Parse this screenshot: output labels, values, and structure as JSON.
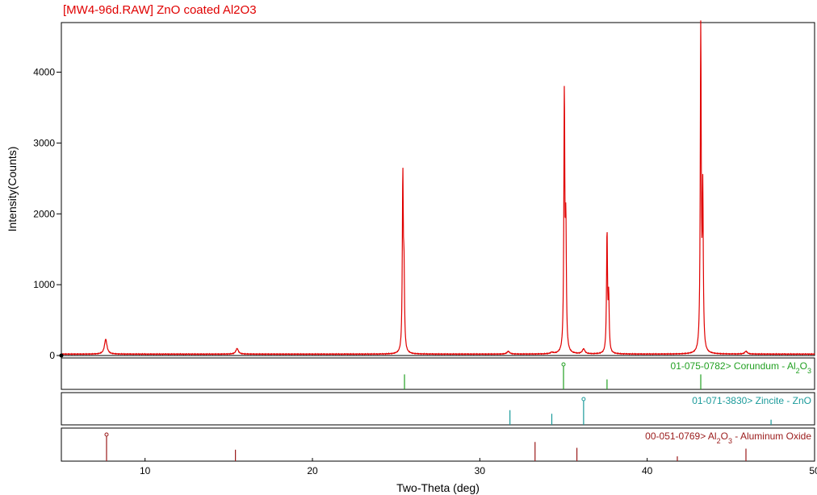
{
  "chart_data": {
    "type": "line",
    "title": "[MW4-96d.RAW] ZnO coated Al2O3",
    "xlabel": "Two-Theta (deg)",
    "ylabel": "Intensity(Counts)",
    "xlim": [
      5,
      50
    ],
    "ylim": [
      0,
      4700
    ],
    "x_ticks": [
      10,
      20,
      30,
      40,
      50
    ],
    "x_tick_labels": [
      "10",
      "20",
      "30",
      "40",
      "50"
    ],
    "y_ticks": [
      0,
      1000,
      2000,
      3000,
      4000
    ],
    "y_tick_labels": [
      "0",
      "1000",
      "2000",
      "3000",
      "4000"
    ],
    "colors": {
      "pattern": "#e00000",
      "title": "#e00000"
    },
    "series": [
      {
        "baseline": 20,
        "peaks": [
          {
            "x": 7.65,
            "y": 230
          },
          {
            "x": 15.5,
            "y": 100
          },
          {
            "x": 25.4,
            "y": 2480
          },
          {
            "x": 25.47,
            "y": 1050
          },
          {
            "x": 31.7,
            "y": 60
          },
          {
            "x": 34.3,
            "y": 40
          },
          {
            "x": 35.05,
            "y": 3640
          },
          {
            "x": 35.14,
            "y": 1680
          },
          {
            "x": 36.2,
            "y": 90
          },
          {
            "x": 37.6,
            "y": 1720
          },
          {
            "x": 37.7,
            "y": 780
          },
          {
            "x": 43.2,
            "y": 4580
          },
          {
            "x": 43.32,
            "y": 2200
          },
          {
            "x": 45.9,
            "y": 60
          }
        ]
      }
    ],
    "reference_patterns": [
      {
        "label_html": "01-075-0782&gt; Corundum - Al<tspan baseline-shift=\"sub\" font-size=\"9\">2</tspan>O<tspan baseline-shift=\"sub\" font-size=\"9\">3</tspan>",
        "color": "#22a022",
        "lines": [
          {
            "x": 25.5,
            "rel": 0.6
          },
          {
            "x": 35.0,
            "rel": 1.0
          },
          {
            "x": 37.6,
            "rel": 0.4
          },
          {
            "x": 43.2,
            "rel": 0.6
          }
        ]
      },
      {
        "label_html": "01-071-3830&gt; Zincite - ZnO",
        "color": "#1a9a9a",
        "lines": [
          {
            "x": 31.8,
            "rel": 0.57
          },
          {
            "x": 34.3,
            "rel": 0.43
          },
          {
            "x": 36.2,
            "rel": 1.0
          },
          {
            "x": 47.4,
            "rel": 0.2
          }
        ]
      },
      {
        "label_html": "00-051-0769&gt; Al<tspan baseline-shift=\"sub\" font-size=\"9\">2</tspan>O<tspan baseline-shift=\"sub\" font-size=\"9\">3</tspan> - Aluminum Oxide",
        "color": "#9a1a1a",
        "lines": [
          {
            "x": 7.7,
            "rel": 1.0
          },
          {
            "x": 15.4,
            "rel": 0.43
          },
          {
            "x": 33.3,
            "rel": 0.72
          },
          {
            "x": 35.8,
            "rel": 0.5
          },
          {
            "x": 41.8,
            "rel": 0.18
          },
          {
            "x": 45.9,
            "rel": 0.47
          }
        ]
      }
    ]
  }
}
